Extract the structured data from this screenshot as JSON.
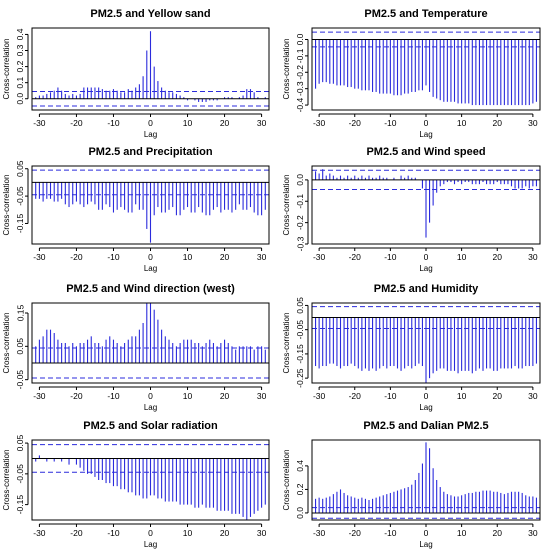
{
  "chart_data": [
    {
      "type": "bar",
      "title": "PM2.5 and Yellow sand",
      "xlabel": "Lag",
      "ylabel": "Cross-correlation",
      "x": [
        -31,
        -30,
        -29,
        -28,
        -27,
        -26,
        -25,
        -24,
        -23,
        -22,
        -21,
        -20,
        -19,
        -18,
        -17,
        -16,
        -15,
        -14,
        -13,
        -12,
        -11,
        -10,
        -9,
        -8,
        -7,
        -6,
        -5,
        -4,
        -3,
        -2,
        -1,
        0,
        1,
        2,
        3,
        4,
        5,
        6,
        7,
        8,
        9,
        10,
        11,
        12,
        13,
        14,
        15,
        16,
        17,
        18,
        19,
        20,
        21,
        22,
        23,
        24,
        25,
        26,
        27,
        28,
        29,
        30,
        31
      ],
      "values": [
        0.01,
        0.02,
        0.02,
        0.03,
        0.04,
        0.05,
        0.07,
        0.05,
        0.03,
        0.02,
        0.03,
        0.02,
        0.03,
        0.07,
        0.07,
        0.07,
        0.07,
        0.07,
        0.06,
        0.05,
        0.05,
        0.06,
        0.05,
        0.04,
        0.04,
        0.06,
        0.05,
        0.07,
        0.09,
        0.14,
        0.3,
        0.42,
        0.2,
        0.11,
        0.07,
        0.05,
        0.04,
        0.04,
        0.03,
        0.02,
        0.01,
        -0.01,
        0.0,
        -0.01,
        -0.02,
        -0.02,
        -0.02,
        -0.01,
        -0.01,
        -0.01,
        0.0,
        0.01,
        0.01,
        0.01,
        0.0,
        0.01,
        0.02,
        0.06,
        0.06,
        0.04,
        0.01,
        0.0,
        0.01
      ],
      "ci": 0.045,
      "xlim": [
        -32,
        32
      ],
      "xticks": [
        -30,
        -20,
        -10,
        0,
        10,
        20,
        30
      ],
      "ylim": [
        -0.07,
        0.44
      ],
      "yticks": [
        0.0,
        0.1,
        0.2,
        0.3,
        0.4
      ],
      "ytick_labels": [
        "0.0",
        "0.1",
        "0.2",
        "0.3",
        "0.4"
      ]
    },
    {
      "type": "bar",
      "title": "PM2.5 and Temperature",
      "xlabel": "Lag",
      "ylabel": "Cross-correlation",
      "x": [
        -31,
        -30,
        -29,
        -28,
        -27,
        -26,
        -25,
        -24,
        -23,
        -22,
        -21,
        -20,
        -19,
        -18,
        -17,
        -16,
        -15,
        -14,
        -13,
        -12,
        -11,
        -10,
        -9,
        -8,
        -7,
        -6,
        -5,
        -4,
        -3,
        -2,
        -1,
        0,
        1,
        2,
        3,
        4,
        5,
        6,
        7,
        8,
        9,
        10,
        11,
        12,
        13,
        14,
        15,
        16,
        17,
        18,
        19,
        20,
        21,
        22,
        23,
        24,
        25,
        26,
        27,
        28,
        29,
        30,
        31
      ],
      "values": [
        -0.3,
        -0.27,
        -0.26,
        -0.26,
        -0.27,
        -0.27,
        -0.28,
        -0.28,
        -0.28,
        -0.29,
        -0.29,
        -0.3,
        -0.3,
        -0.31,
        -0.31,
        -0.31,
        -0.32,
        -0.32,
        -0.33,
        -0.33,
        -0.33,
        -0.33,
        -0.34,
        -0.34,
        -0.34,
        -0.33,
        -0.33,
        -0.32,
        -0.32,
        -0.31,
        -0.31,
        -0.28,
        -0.32,
        -0.35,
        -0.36,
        -0.37,
        -0.38,
        -0.38,
        -0.38,
        -0.38,
        -0.39,
        -0.39,
        -0.39,
        -0.39,
        -0.4,
        -0.4,
        -0.4,
        -0.4,
        -0.4,
        -0.4,
        -0.4,
        -0.4,
        -0.4,
        -0.4,
        -0.4,
        -0.4,
        -0.4,
        -0.4,
        -0.4,
        -0.4,
        -0.4,
        -0.39,
        -0.38
      ],
      "ci": 0.045,
      "xlim": [
        -32,
        32
      ],
      "xticks": [
        -30,
        -20,
        -10,
        0,
        10,
        20,
        30
      ],
      "ylim": [
        -0.43,
        0.07
      ],
      "yticks": [
        0.0,
        -0.1,
        -0.2,
        -0.3,
        -0.4
      ],
      "ytick_labels": [
        "0.0",
        "-0.1",
        "-0.2",
        "-0.3",
        "-0.4"
      ]
    },
    {
      "type": "bar",
      "title": "PM2.5 and Precipitation",
      "xlabel": "Lag",
      "ylabel": "Cross-correlation",
      "x": [
        -31,
        -30,
        -29,
        -28,
        -27,
        -26,
        -25,
        -24,
        -23,
        -22,
        -21,
        -20,
        -19,
        -18,
        -17,
        -16,
        -15,
        -14,
        -13,
        -12,
        -11,
        -10,
        -9,
        -8,
        -7,
        -6,
        -5,
        -4,
        -3,
        -2,
        -1,
        0,
        1,
        2,
        3,
        4,
        5,
        6,
        7,
        8,
        9,
        10,
        11,
        12,
        13,
        14,
        15,
        16,
        17,
        18,
        19,
        20,
        21,
        22,
        23,
        24,
        25,
        26,
        27,
        28,
        29,
        30,
        31
      ],
      "values": [
        -0.06,
        -0.06,
        -0.07,
        -0.06,
        -0.06,
        -0.07,
        -0.07,
        -0.06,
        -0.08,
        -0.09,
        -0.08,
        -0.07,
        -0.08,
        -0.09,
        -0.08,
        -0.07,
        -0.08,
        -0.1,
        -0.1,
        -0.08,
        -0.09,
        -0.11,
        -0.1,
        -0.09,
        -0.1,
        -0.11,
        -0.11,
        -0.08,
        -0.1,
        -0.1,
        -0.17,
        -0.22,
        -0.12,
        -0.09,
        -0.11,
        -0.11,
        -0.1,
        -0.09,
        -0.12,
        -0.12,
        -0.1,
        -0.09,
        -0.11,
        -0.11,
        -0.09,
        -0.11,
        -0.12,
        -0.12,
        -0.1,
        -0.09,
        -0.11,
        -0.1,
        -0.1,
        -0.11,
        -0.1,
        -0.08,
        -0.1,
        -0.1,
        -0.09,
        -0.11,
        -0.12,
        -0.12,
        -0.1
      ],
      "ci": 0.045,
      "xlim": [
        -32,
        32
      ],
      "xticks": [
        -30,
        -20,
        -10,
        0,
        10,
        20,
        30
      ],
      "ylim": [
        -0.225,
        0.06
      ],
      "yticks": [
        0.05,
        -0.05,
        -0.15
      ],
      "ytick_labels": [
        "0.05",
        "-0.05",
        "-0.15"
      ]
    },
    {
      "type": "bar",
      "title": "PM2.5 and Wind speed",
      "xlabel": "Lag",
      "ylabel": "Cross-correlation",
      "x": [
        -31,
        -30,
        -29,
        -28,
        -27,
        -26,
        -25,
        -24,
        -23,
        -22,
        -21,
        -20,
        -19,
        -18,
        -17,
        -16,
        -15,
        -14,
        -13,
        -12,
        -11,
        -10,
        -9,
        -8,
        -7,
        -6,
        -5,
        -4,
        -3,
        -2,
        -1,
        0,
        1,
        2,
        3,
        4,
        5,
        6,
        7,
        8,
        9,
        10,
        11,
        12,
        13,
        14,
        15,
        16,
        17,
        18,
        19,
        20,
        21,
        22,
        23,
        24,
        25,
        26,
        27,
        28,
        29,
        30,
        31
      ],
      "values": [
        0.04,
        0.03,
        0.05,
        0.02,
        0.03,
        0.02,
        0.01,
        0.02,
        0.01,
        0.02,
        0.01,
        0.02,
        0.01,
        0.02,
        0.01,
        0.02,
        0.01,
        0.01,
        0.02,
        0.01,
        0.01,
        0.0,
        0.01,
        0.0,
        0.02,
        0.01,
        0.02,
        0.01,
        0.01,
        0.0,
        -0.04,
        -0.27,
        -0.2,
        -0.12,
        -0.06,
        -0.03,
        -0.02,
        -0.01,
        -0.01,
        -0.02,
        -0.01,
        -0.02,
        -0.01,
        -0.01,
        -0.02,
        -0.02,
        -0.02,
        -0.01,
        -0.02,
        -0.02,
        -0.02,
        -0.01,
        -0.02,
        -0.02,
        -0.02,
        -0.03,
        -0.04,
        -0.04,
        -0.04,
        -0.03,
        -0.04,
        -0.03,
        -0.03
      ],
      "ci": 0.045,
      "xlim": [
        -32,
        32
      ],
      "xticks": [
        -30,
        -20,
        -10,
        0,
        10,
        20,
        30
      ],
      "ylim": [
        -0.3,
        0.065
      ],
      "yticks": [
        0.0,
        -0.1,
        -0.2,
        -0.3
      ],
      "ytick_labels": [
        "0.0",
        "-0.1",
        "-0.2",
        "-0.3"
      ]
    },
    {
      "type": "bar",
      "title": "PM2.5 and Wind direction (west)",
      "xlabel": "Lag",
      "ylabel": "Cross-correlation",
      "x": [
        -31,
        -30,
        -29,
        -28,
        -27,
        -26,
        -25,
        -24,
        -23,
        -22,
        -21,
        -20,
        -19,
        -18,
        -17,
        -16,
        -15,
        -14,
        -13,
        -12,
        -11,
        -10,
        -9,
        -8,
        -7,
        -6,
        -5,
        -4,
        -3,
        -2,
        -1,
        0,
        1,
        2,
        3,
        4,
        5,
        6,
        7,
        8,
        9,
        10,
        11,
        12,
        13,
        14,
        15,
        16,
        17,
        18,
        19,
        20,
        21,
        22,
        23,
        24,
        25,
        26,
        27,
        28,
        29,
        30,
        31
      ],
      "values": [
        0.05,
        0.07,
        0.08,
        0.1,
        0.1,
        0.09,
        0.07,
        0.06,
        0.06,
        0.05,
        0.06,
        0.05,
        0.06,
        0.06,
        0.07,
        0.08,
        0.06,
        0.06,
        0.05,
        0.07,
        0.08,
        0.07,
        0.06,
        0.05,
        0.06,
        0.07,
        0.08,
        0.08,
        0.1,
        0.12,
        0.18,
        0.18,
        0.16,
        0.13,
        0.1,
        0.08,
        0.07,
        0.06,
        0.05,
        0.06,
        0.07,
        0.07,
        0.07,
        0.06,
        0.06,
        0.05,
        0.06,
        0.07,
        0.06,
        0.05,
        0.06,
        0.07,
        0.06,
        0.05,
        0.04,
        0.05,
        0.05,
        0.05,
        0.05,
        0.04,
        0.05,
        0.05,
        0.04
      ],
      "ci": 0.045,
      "xlim": [
        -32,
        32
      ],
      "xticks": [
        -30,
        -20,
        -10,
        0,
        10,
        20,
        30
      ],
      "ylim": [
        -0.06,
        0.18
      ],
      "yticks": [
        0.15,
        0.05,
        -0.05
      ],
      "ytick_labels": [
        "0.15",
        "0.05",
        "-0.05"
      ]
    },
    {
      "type": "bar",
      "title": "PM2.5 and Humidity",
      "xlabel": "Lag",
      "ylabel": "Cross-correlation",
      "x": [
        -31,
        -30,
        -29,
        -28,
        -27,
        -26,
        -25,
        -24,
        -23,
        -22,
        -21,
        -20,
        -19,
        -18,
        -17,
        -16,
        -15,
        -14,
        -13,
        -12,
        -11,
        -10,
        -9,
        -8,
        -7,
        -6,
        -5,
        -4,
        -3,
        -2,
        -1,
        0,
        1,
        2,
        3,
        4,
        5,
        6,
        7,
        8,
        9,
        10,
        11,
        12,
        13,
        14,
        15,
        16,
        17,
        18,
        19,
        20,
        21,
        22,
        23,
        24,
        25,
        26,
        27,
        28,
        29,
        30,
        31
      ],
      "values": [
        -0.2,
        -0.21,
        -0.2,
        -0.2,
        -0.19,
        -0.19,
        -0.2,
        -0.21,
        -0.2,
        -0.2,
        -0.19,
        -0.2,
        -0.21,
        -0.22,
        -0.21,
        -0.22,
        -0.21,
        -0.22,
        -0.21,
        -0.2,
        -0.21,
        -0.2,
        -0.2,
        -0.21,
        -0.22,
        -0.21,
        -0.2,
        -0.21,
        -0.2,
        -0.19,
        -0.2,
        -0.27,
        -0.25,
        -0.23,
        -0.22,
        -0.21,
        -0.21,
        -0.22,
        -0.22,
        -0.22,
        -0.23,
        -0.22,
        -0.22,
        -0.22,
        -0.23,
        -0.22,
        -0.21,
        -0.22,
        -0.21,
        -0.21,
        -0.22,
        -0.22,
        -0.21,
        -0.21,
        -0.21,
        -0.21,
        -0.2,
        -0.21,
        -0.21,
        -0.2,
        -0.2,
        -0.2,
        -0.19
      ],
      "ci": 0.045,
      "xlim": [
        -32,
        32
      ],
      "xticks": [
        -30,
        -20,
        -10,
        0,
        10,
        20,
        30
      ],
      "ylim": [
        -0.27,
        0.06
      ],
      "yticks": [
        0.05,
        -0.05,
        -0.15,
        -0.25
      ],
      "ytick_labels": [
        "0.05",
        "-0.05",
        "-0.15",
        "-0.25"
      ]
    },
    {
      "type": "bar",
      "title": "PM2.5 and Solar radiation",
      "xlabel": "Lag",
      "ylabel": "Cross-correlation",
      "x": [
        -31,
        -30,
        -29,
        -28,
        -27,
        -26,
        -25,
        -24,
        -23,
        -22,
        -21,
        -20,
        -19,
        -18,
        -17,
        -16,
        -15,
        -14,
        -13,
        -12,
        -11,
        -10,
        -9,
        -8,
        -7,
        -6,
        -5,
        -4,
        -3,
        -2,
        -1,
        0,
        1,
        2,
        3,
        4,
        5,
        6,
        7,
        8,
        9,
        10,
        11,
        12,
        13,
        14,
        15,
        16,
        17,
        18,
        19,
        20,
        21,
        22,
        23,
        24,
        25,
        26,
        27,
        28,
        29,
        30,
        31
      ],
      "values": [
        -0.01,
        0.01,
        0.0,
        -0.01,
        0.0,
        -0.01,
        0.0,
        -0.01,
        0.0,
        -0.02,
        0.0,
        -0.02,
        -0.03,
        -0.04,
        -0.05,
        -0.05,
        -0.06,
        -0.07,
        -0.07,
        -0.08,
        -0.08,
        -0.09,
        -0.09,
        -0.1,
        -0.1,
        -0.11,
        -0.11,
        -0.12,
        -0.12,
        -0.13,
        -0.13,
        -0.12,
        -0.12,
        -0.13,
        -0.13,
        -0.14,
        -0.14,
        -0.14,
        -0.14,
        -0.15,
        -0.15,
        -0.15,
        -0.15,
        -0.16,
        -0.16,
        -0.15,
        -0.16,
        -0.16,
        -0.16,
        -0.17,
        -0.17,
        -0.17,
        -0.17,
        -0.18,
        -0.18,
        -0.18,
        -0.19,
        -0.2,
        -0.19,
        -0.18,
        -0.17,
        -0.16,
        -0.15
      ],
      "ci": 0.045,
      "xlim": [
        -32,
        32
      ],
      "xticks": [
        -30,
        -20,
        -10,
        0,
        10,
        20,
        30
      ],
      "ylim": [
        -0.2,
        0.06
      ],
      "yticks": [
        0.05,
        -0.05,
        -0.15
      ],
      "ytick_labels": [
        "0.05",
        "-0.05",
        "-0.15"
      ]
    },
    {
      "type": "bar",
      "title": "PM2.5 and Dalian PM2.5",
      "xlabel": "Lag",
      "ylabel": "Cross-correlation",
      "x": [
        -31,
        -30,
        -29,
        -28,
        -27,
        -26,
        -25,
        -24,
        -23,
        -22,
        -21,
        -20,
        -19,
        -18,
        -17,
        -16,
        -15,
        -14,
        -13,
        -12,
        -11,
        -10,
        -9,
        -8,
        -7,
        -6,
        -5,
        -4,
        -3,
        -2,
        -1,
        0,
        1,
        2,
        3,
        4,
        5,
        6,
        7,
        8,
        9,
        10,
        11,
        12,
        13,
        14,
        15,
        16,
        17,
        18,
        19,
        20,
        21,
        22,
        23,
        24,
        25,
        26,
        27,
        28,
        29,
        30,
        31
      ],
      "values": [
        0.12,
        0.13,
        0.12,
        0.13,
        0.14,
        0.16,
        0.18,
        0.2,
        0.17,
        0.15,
        0.14,
        0.13,
        0.12,
        0.13,
        0.12,
        0.11,
        0.12,
        0.13,
        0.14,
        0.15,
        0.16,
        0.17,
        0.18,
        0.19,
        0.2,
        0.21,
        0.22,
        0.24,
        0.28,
        0.34,
        0.42,
        0.6,
        0.55,
        0.38,
        0.28,
        0.22,
        0.18,
        0.16,
        0.15,
        0.14,
        0.14,
        0.15,
        0.16,
        0.17,
        0.17,
        0.18,
        0.18,
        0.19,
        0.19,
        0.19,
        0.18,
        0.18,
        0.17,
        0.16,
        0.17,
        0.18,
        0.18,
        0.18,
        0.17,
        0.15,
        0.14,
        0.14,
        0.13
      ],
      "ci": 0.045,
      "xlim": [
        -32,
        32
      ],
      "xticks": [
        -30,
        -20,
        -10,
        0,
        10,
        20,
        30
      ],
      "ylim": [
        -0.06,
        0.62
      ],
      "yticks": [
        0.0,
        0.2,
        0.4
      ],
      "ytick_labels": [
        "0.0",
        "0.2",
        "0.4"
      ]
    }
  ]
}
